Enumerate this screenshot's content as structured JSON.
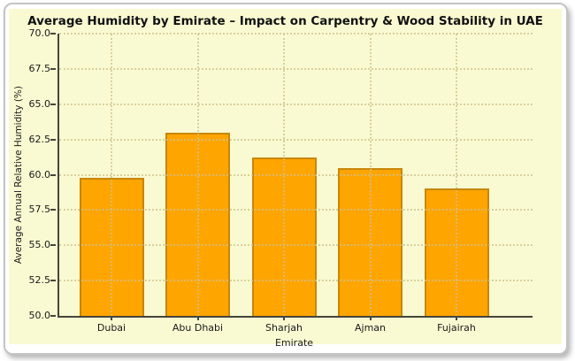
{
  "chart_data": {
    "type": "bar",
    "title": "Average Humidity by Emirate – Impact on Carpentry & Wood Stability in UAE",
    "categories": [
      "Dubai",
      "Abu Dhabi",
      "Sharjah",
      "Ajman",
      "Fujairah"
    ],
    "values": [
      59.8,
      63.0,
      61.2,
      60.5,
      59.0
    ],
    "xlabel": "Emirate",
    "ylabel": "Average Annual Relative Humidity (%)",
    "ylim": [
      50.0,
      70.0
    ],
    "ytick_step": 2.5,
    "ytick_format_decimals": 1,
    "grid": "dotted, both axes, drawn above bars",
    "legend": "none",
    "colors": {
      "bar_fill": "#FFA500",
      "bar_edge": "#C8860B",
      "figure_background": "#FAFAD2",
      "grid_color": "#CDC18C",
      "spine_color": "#45453C",
      "text_color": "#1a1a1a",
      "card_border": "#C4C4C4"
    }
  }
}
